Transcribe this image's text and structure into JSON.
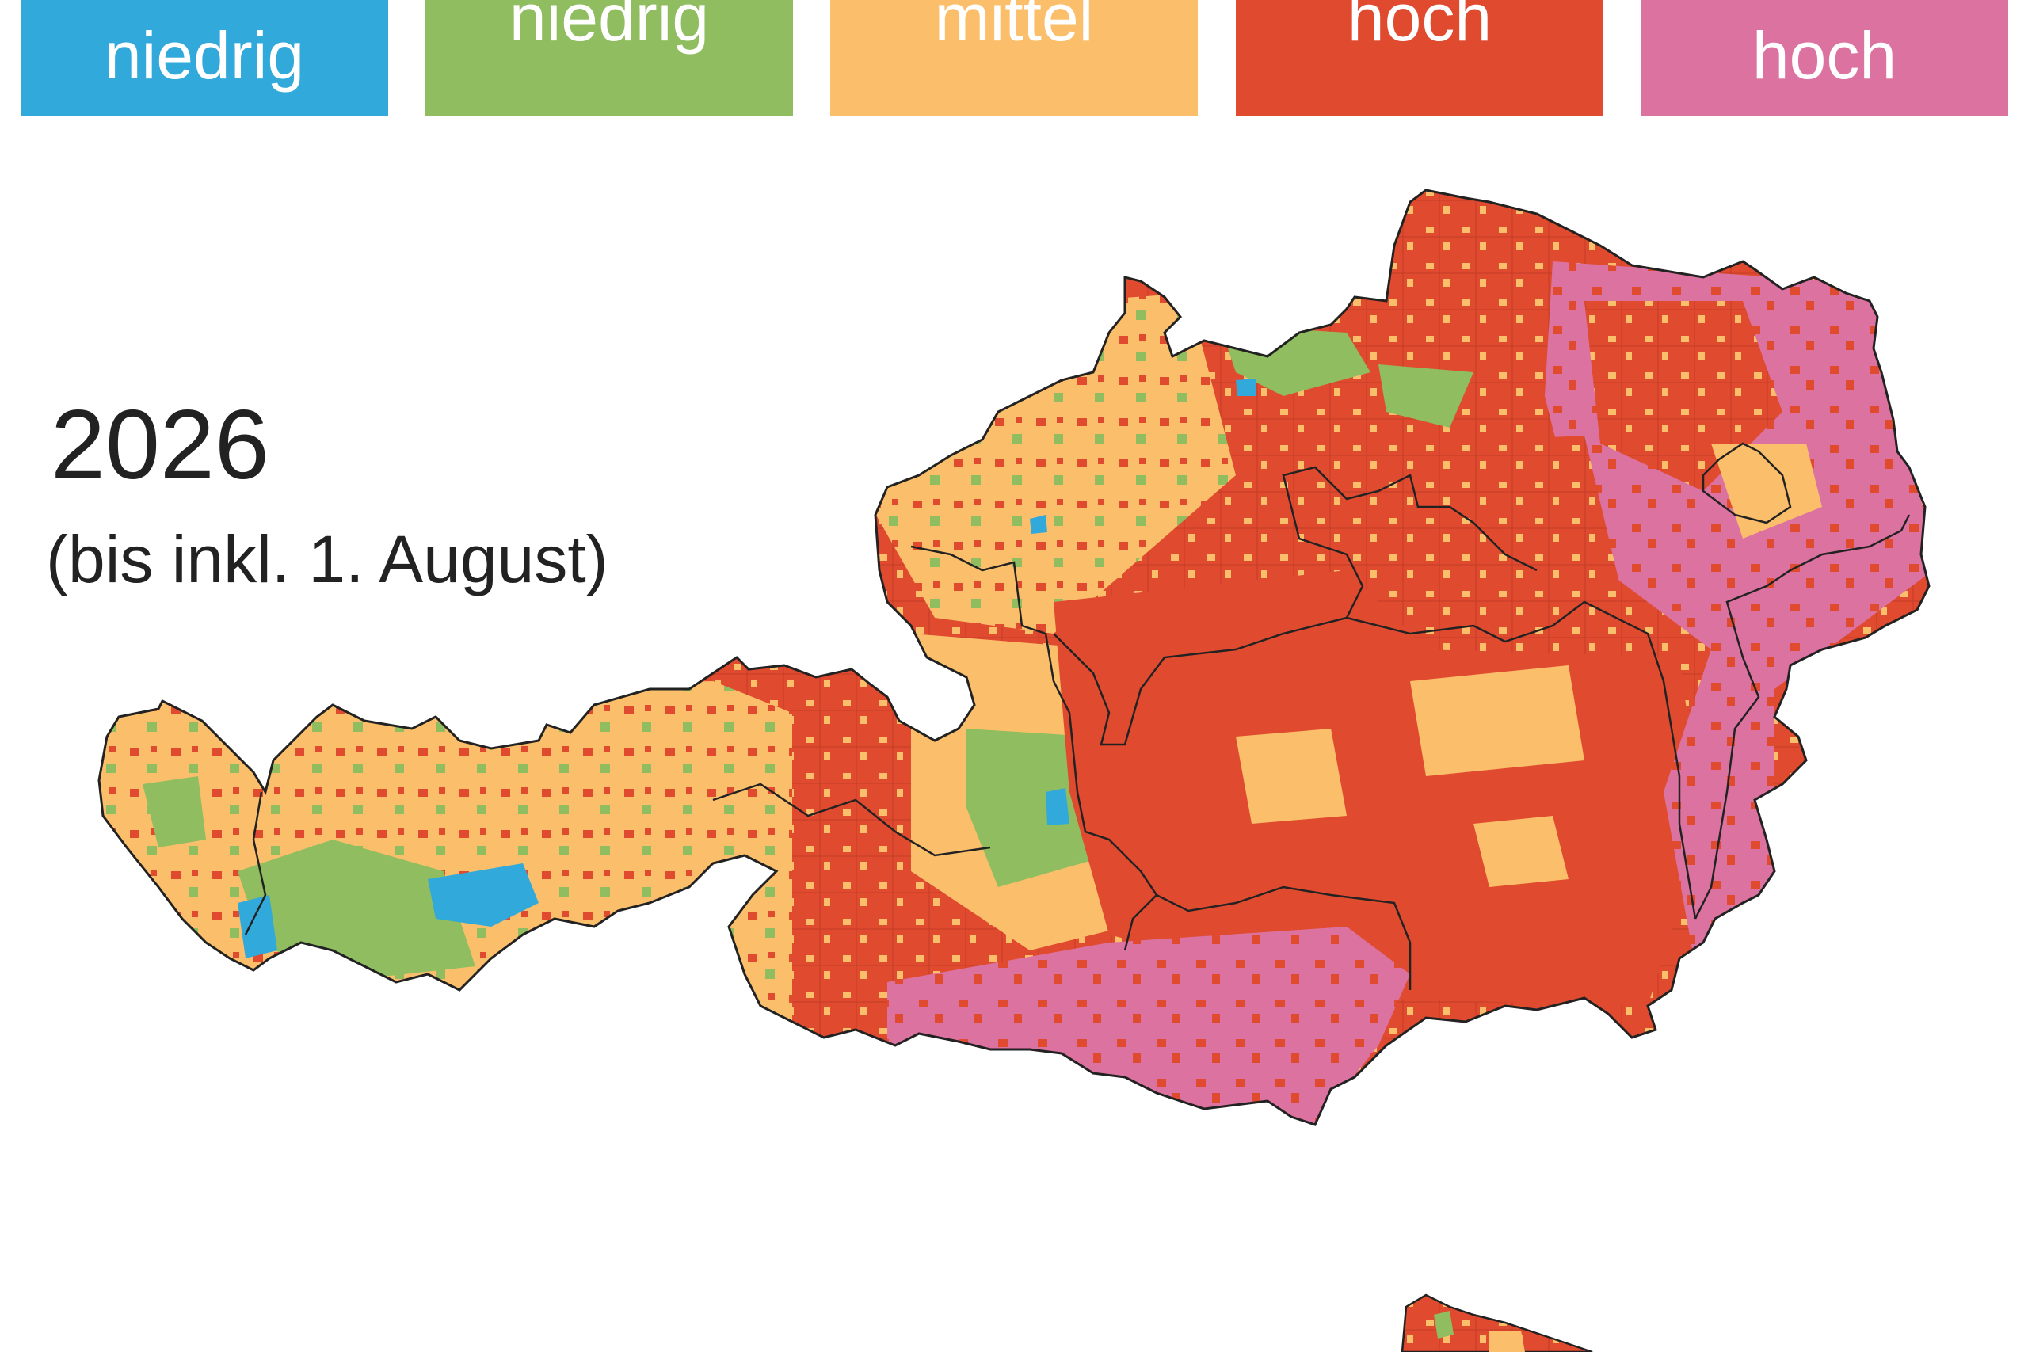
{
  "legend": {
    "items": [
      {
        "line1": "",
        "line2": "niedrig",
        "color": "#32a9db"
      },
      {
        "line1": "niedrig",
        "line2": "",
        "color": "#8fbd5f"
      },
      {
        "line1": "mittel",
        "line2": "",
        "color": "#fbbf6b"
      },
      {
        "line1": "hoch",
        "line2": "",
        "color": "#e04b30"
      },
      {
        "line1": "",
        "line2": "hoch",
        "color": "#dc72a0"
      }
    ]
  },
  "title": {
    "year": "2026",
    "note": "(bis inkl. 1. August)"
  },
  "map": {
    "country": "Austria",
    "border_color": "#222222"
  }
}
